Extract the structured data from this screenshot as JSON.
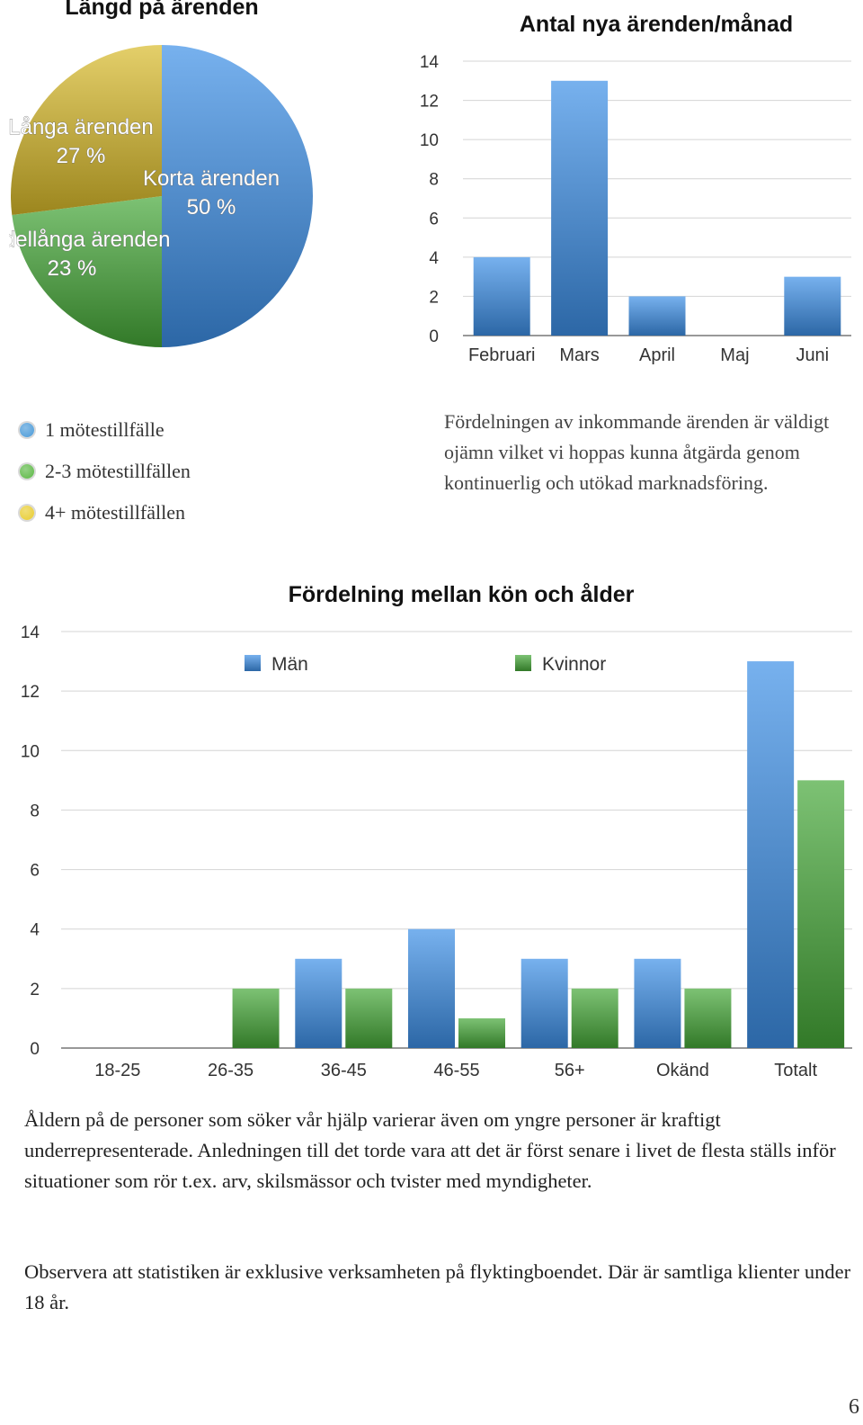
{
  "chart_data": [
    {
      "type": "pie",
      "title": "Längd på ärenden",
      "slices": [
        {
          "label": "Korta ärenden",
          "value": 50,
          "value_label": "50 %",
          "color": "#3d8fe6"
        },
        {
          "label": "Medellånga ärenden",
          "value": 23,
          "value_label": "23 %",
          "color": "#45a838"
        },
        {
          "label": "Långa ärenden",
          "value": 27,
          "value_label": "27 %",
          "color": "#d9ba2a"
        }
      ]
    },
    {
      "type": "bar",
      "title": "Antal nya ärenden/månad",
      "categories": [
        "Februari",
        "Mars",
        "April",
        "Maj",
        "Juni"
      ],
      "values": [
        4,
        13,
        2,
        0,
        3
      ],
      "ylim": [
        0,
        14
      ],
      "yticks": [
        0,
        2,
        4,
        6,
        8,
        10,
        12,
        14
      ],
      "grid": true,
      "color": "#3d8fe6"
    },
    {
      "type": "bar",
      "title": "Fördelning mellan kön och ålder",
      "categories": [
        "18-25",
        "26-35",
        "36-45",
        "46-55",
        "56+",
        "Okänd",
        "Totalt"
      ],
      "series": [
        {
          "name": "Män",
          "values": [
            0,
            0,
            3,
            4,
            3,
            3,
            13
          ],
          "color": "#3d8fe6"
        },
        {
          "name": "Kvinnor",
          "values": [
            0,
            2,
            2,
            1,
            2,
            2,
            9
          ],
          "color": "#45a838"
        }
      ],
      "ylim": [
        0,
        14
      ],
      "yticks": [
        0,
        2,
        4,
        6,
        8,
        10,
        12,
        14
      ],
      "grid": true,
      "legend": "top"
    }
  ],
  "legend_meetings": [
    {
      "label": "1 mötestillfälle",
      "color": "#4a9ad8"
    },
    {
      "label": "2-3 mötestillfällen",
      "color": "#5cb845"
    },
    {
      "label": "4+ mötestillfällen",
      "color": "#e8cc30"
    }
  ],
  "note1": "Fördelningen av inkommande ärenden är väldigt ojämn vilket vi hoppas kunna åtgärda genom kontinuerlig och utökad marknadsföring.",
  "para1": "Åldern på de personer som söker vår hjälp varierar även om yngre personer är kraftigt underrepresenterade. Anledningen till det torde vara att det är först senare i livet de flesta ställs inför situationer som rör t.ex. arv, skilsmässor och tvister med myndigheter.",
  "para2": "Observera att statistiken är exklusive verksamheten på flyktingboendet. Där är samtliga klienter under 18 år.",
  "page_number": "6"
}
